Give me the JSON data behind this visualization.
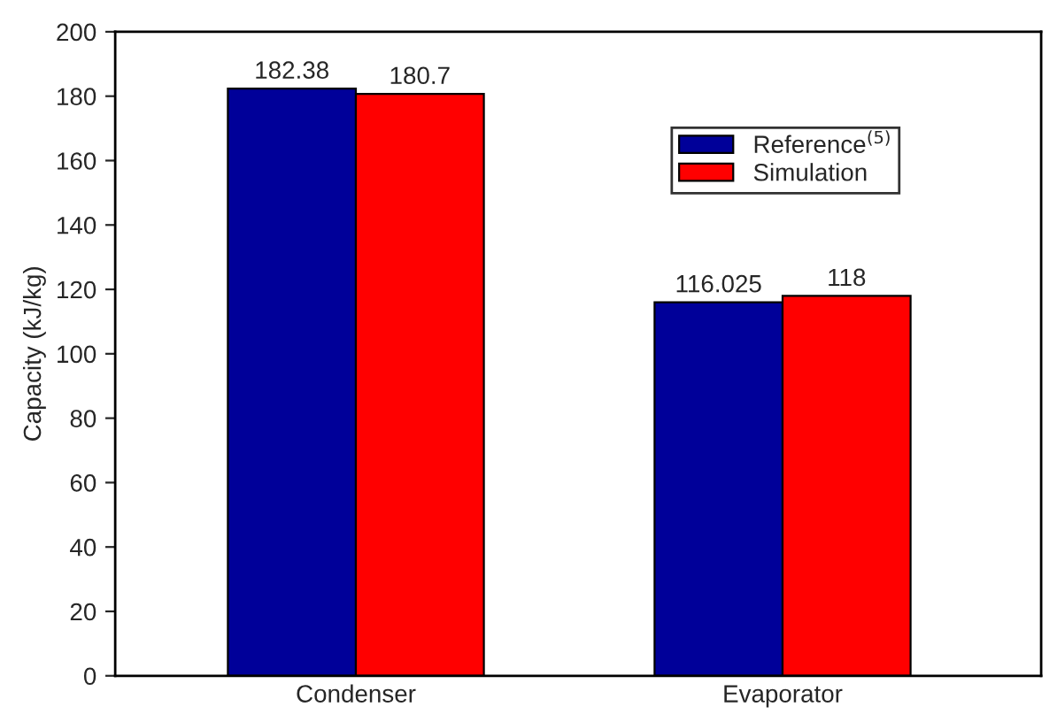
{
  "chart_data": {
    "type": "bar",
    "ylabel": "Capacity (kJ/kg)",
    "categories": [
      "Condenser",
      "Evaporator"
    ],
    "series": [
      {
        "name": "Reference$^{(5)}$",
        "color": "#000099",
        "values": [
          182.38,
          116.025
        ],
        "value_labels": [
          "182.38",
          "116.025"
        ]
      },
      {
        "name": "Simulation",
        "color": "#ff0000",
        "values": [
          180.7,
          118
        ],
        "value_labels": [
          "180.7",
          "118"
        ]
      }
    ],
    "ylim": [
      0,
      200
    ],
    "yticks": [
      0,
      20,
      40,
      60,
      80,
      100,
      120,
      140,
      160,
      180,
      200
    ],
    "legend": "top right",
    "grid": false
  }
}
